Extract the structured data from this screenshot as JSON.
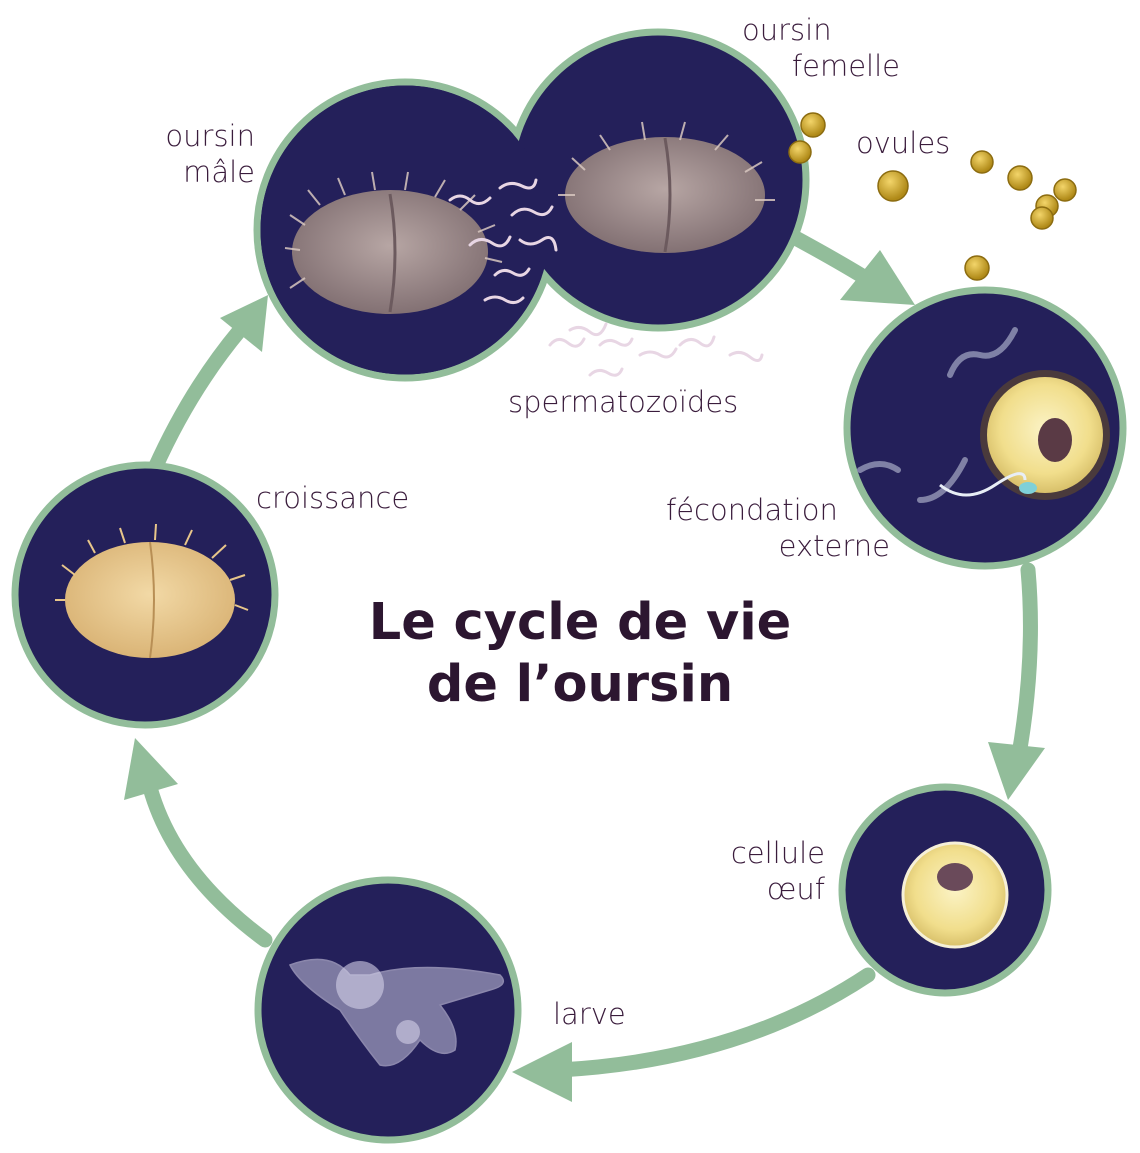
{
  "title": {
    "line1": "Le cycle de vie",
    "line2": "de l’oursin"
  },
  "labels": {
    "male": {
      "line1": "oursin",
      "line2": "mâle"
    },
    "female": {
      "line1": "oursin",
      "line2": "femelle"
    },
    "ovules": "ovules",
    "sperm": "spermatozoïdes",
    "fecondation": {
      "line1": "fécondation",
      "line2": "externe"
    },
    "egg_cell": {
      "line1": "cellule",
      "line2": "œuf"
    },
    "larva": "larve",
    "growth": "croissance"
  },
  "colors": {
    "circle_fill": "#24205a",
    "ring": "#92bd9a",
    "arrow": "#92bd9a",
    "text": "#3a1c3c",
    "ovule": "#c9a227"
  }
}
